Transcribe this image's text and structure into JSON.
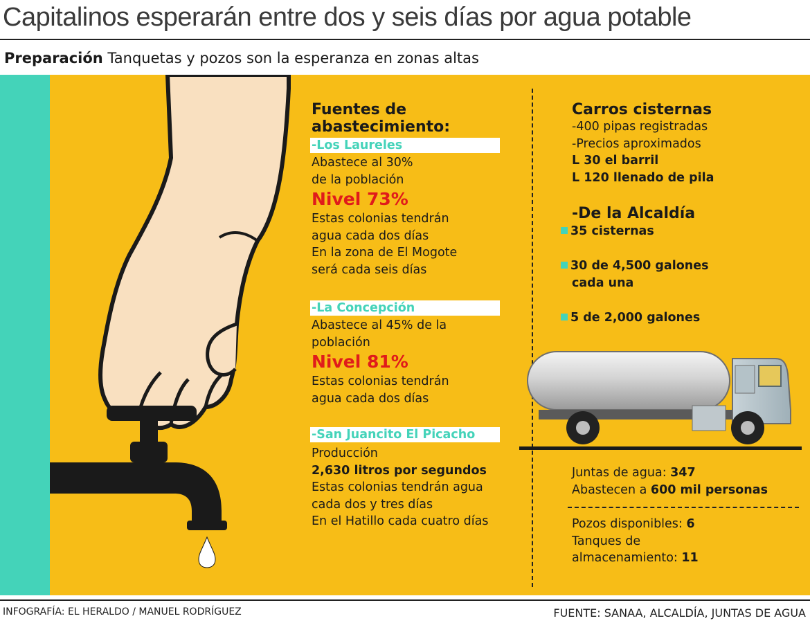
{
  "header": {
    "title": "Capitalinos esperarán entre dos y seis días por agua potable",
    "subtitle_bold": "Preparación",
    "subtitle_rest": " Tanquetas y pozos son la esperanza en zonas altas"
  },
  "sources": {
    "heading_1": "Fuentes de",
    "heading_2": "abastecimiento:",
    "los_laureles": {
      "label": "-Los Laureles",
      "line1": "Abastece al 30%",
      "line2": "de la población",
      "nivel": "Nivel 73%",
      "line3": "Estas colonias tendrán",
      "line4": "agua cada dos días",
      "line5": "En la zona de El Mogote",
      "line6": "será cada seis días"
    },
    "la_concepcion": {
      "label": "-La Concepción",
      "line1": "Abastece al 45% de la",
      "line2": "población",
      "nivel": "Nivel 81%",
      "line3": "Estas colonias tendrán",
      "line4": "agua cada dos días"
    },
    "san_juancito": {
      "label": "-San Juancito El Picacho",
      "line1": "Producción",
      "line2": "2,630 litros por segundos",
      "line3": "Estas colonias tendrán agua",
      "line4": "cada dos y tres días",
      "line5": "En el Hatillo cada cuatro días"
    }
  },
  "cisterns": {
    "heading": "Carros cisternas",
    "line1": "-400 pipas registradas",
    "line2": "-Precios aproximados",
    "price1": "L 30 el barril",
    "price2": "L 120 llenado de pila",
    "alcaldia_heading": "-De la Alcaldía",
    "item1": "35 cisternas",
    "item2a": "30 de 4,500 galones",
    "item2b": "cada una",
    "item3": "5  de 2,000 galones"
  },
  "juntas": {
    "label": "Juntas de agua: ",
    "value": "347",
    "line2_prefix": "Abastecen a ",
    "line2_bold": "600 mil personas"
  },
  "pozos": {
    "label": "Pozos disponibles: ",
    "value": "6",
    "tanques_1": "Tanques de",
    "tanques_2": "almacenamiento: ",
    "tanques_value": "11"
  },
  "footer": {
    "credit": "INFOGRAFÍA: EL HERALDO / MANUEL RODRÍGUEZ",
    "source": "FUENTE: SANAA, ALCALDÍA, JUNTAS DE AGUA"
  },
  "colors": {
    "background": "#f7bd17",
    "teal": "#44d3b9",
    "red": "#e01b1b"
  }
}
